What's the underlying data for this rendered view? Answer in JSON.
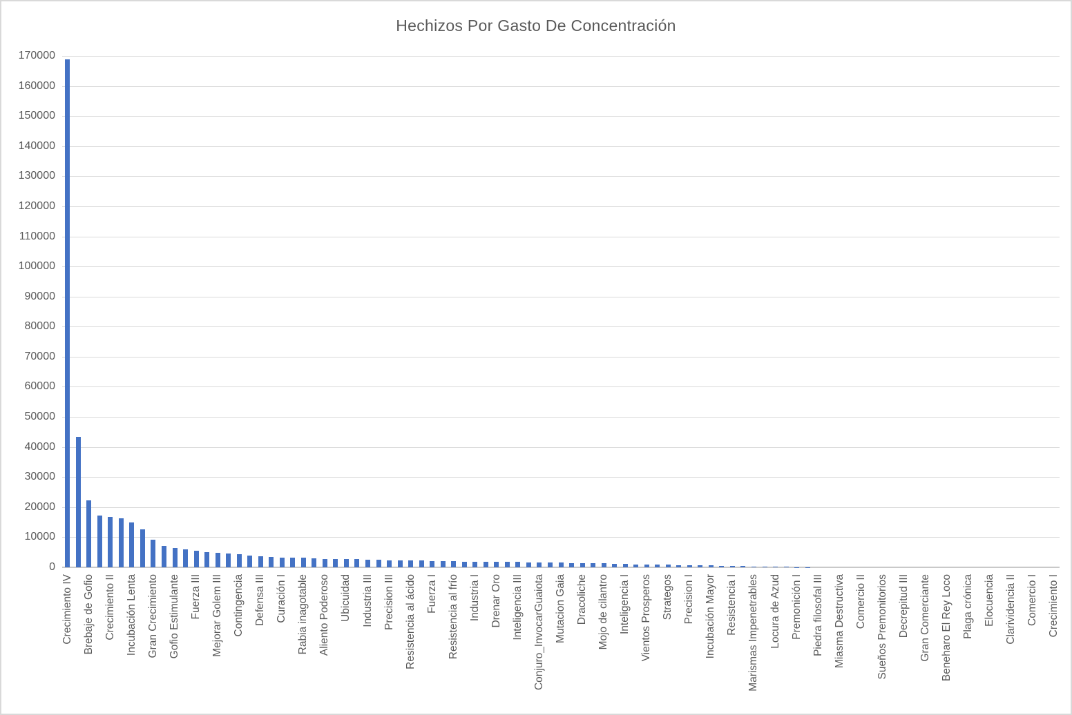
{
  "chart_data": {
    "type": "bar",
    "title": "Hechizos Por Gasto De Concentración",
    "xlabel": "",
    "ylabel": "",
    "ylim": [
      0,
      170000
    ],
    "ytick_step": 10000,
    "grid": true,
    "legend": false,
    "bar_color": "#4472C4",
    "num_bars": 93,
    "xtick_label_every": 2,
    "xtick_labels": [
      "Crecimiento IV",
      "Brebaje de Gofio",
      "Crecimiento II",
      "Incubación Lenta",
      "Gran Crecimiento",
      "Gofio Estimulante",
      "Fuerza III",
      "Mejorar Golem III",
      "Contingencia",
      "Defensa III",
      "Curación I",
      "Rabia inagotable",
      "Aliento Poderoso",
      "Ubicuidad",
      "Industria III",
      "Precision III",
      "Resistencia al ácido",
      "Fuerza I",
      "Resistencia al frío",
      "Industria I",
      "Drenar Oro",
      "Inteligencia III",
      "Conjuro_InvocarGuaiota",
      "Mutacion Gaia",
      "Dracoliche",
      "Mojo de cilantro",
      "Inteligencia I",
      "Vientos Prosperos",
      "Strategos",
      "Precision I",
      "Incubación Mayor",
      "Resistencia I",
      "Marismas Impenetrables",
      "Locura de Azud",
      "Premonición I",
      "Piedra filosofal III",
      "Miasma Destructiva",
      "Comercio II",
      "Sueños Premonitorios",
      "Decrepitud III",
      "Gran Comerciante",
      "Beneharo El Rey Loco",
      "Plaga crónica",
      "Elocuencia",
      "Clarividencia II",
      "Comercio I",
      "Crecimiento I"
    ],
    "values": [
      168800,
      43400,
      22300,
      17200,
      16700,
      16400,
      15000,
      12600,
      9200,
      7100,
      6400,
      5900,
      5500,
      5100,
      4900,
      4600,
      4300,
      4000,
      3700,
      3450,
      3300,
      3200,
      3100,
      2950,
      2850,
      2800,
      2750,
      2700,
      2600,
      2500,
      2400,
      2300,
      2250,
      2200,
      2100,
      2050,
      2000,
      1950,
      1900,
      1850,
      1800,
      1780,
      1750,
      1700,
      1650,
      1600,
      1500,
      1450,
      1420,
      1400,
      1350,
      1250,
      1150,
      1000,
      950,
      900,
      850,
      800,
      700,
      650,
      600,
      550,
      450,
      350,
      300,
      250,
      200,
      150,
      100,
      50,
      0,
      0,
      0,
      0,
      0,
      0,
      0,
      0,
      0,
      0,
      0,
      0,
      0,
      0,
      0,
      0,
      0,
      0,
      0,
      0,
      0,
      0,
      0
    ]
  },
  "colors": {
    "bar": "#4472C4",
    "gridline": "#D9D9D9",
    "baseline": "#C9C9C9",
    "axis_text": "#595959",
    "title_text": "#595959",
    "frame_border": "#D9D9D9",
    "background": "#FFFFFF"
  }
}
